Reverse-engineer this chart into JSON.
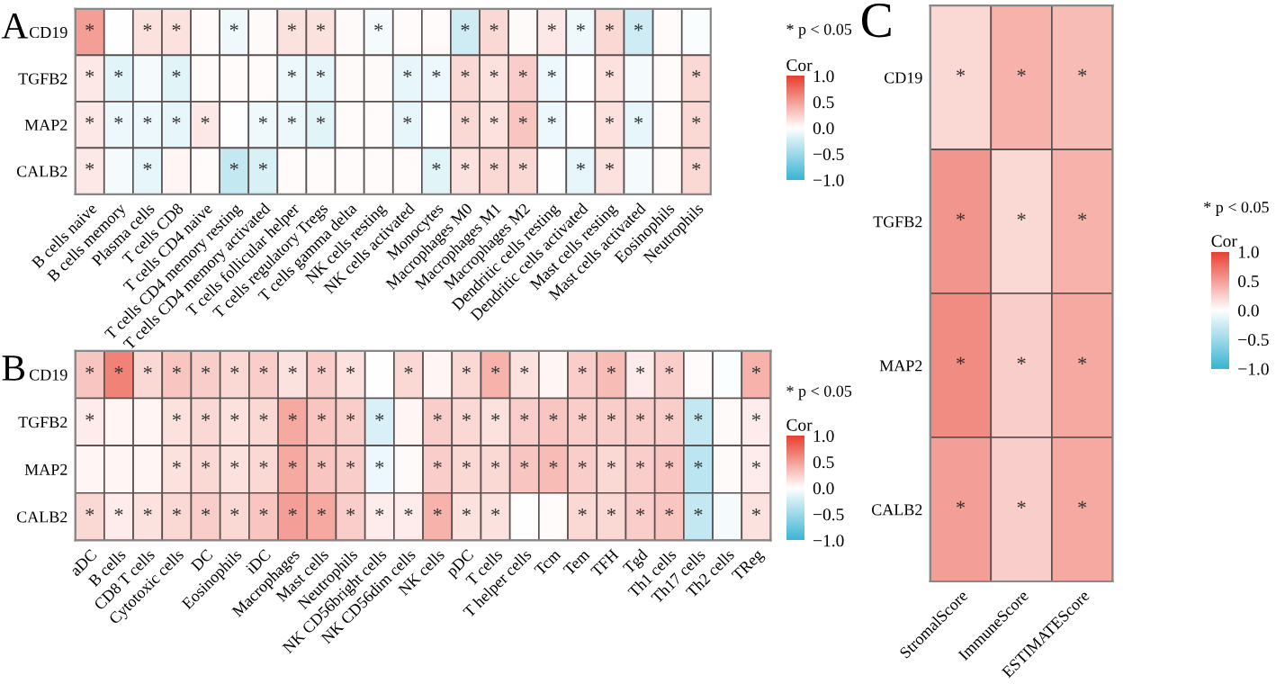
{
  "chart_data": [
    {
      "type": "heatmap",
      "title": "A",
      "clabel": "Cor",
      "annotations": [
        "* p < 0.05"
      ],
      "clim": [
        -1,
        1
      ],
      "cticks": [
        {
          "value": 1,
          "label": "1.0"
        },
        {
          "value": 0.5,
          "label": "0.5"
        },
        {
          "value": 0,
          "label": "0.0"
        },
        {
          "value": -0.5,
          "label": "−0.5"
        },
        {
          "value": -1,
          "label": "−1.0"
        }
      ],
      "colors": [
        "#3bb4d3",
        "#ffffff",
        "#e8402f"
      ],
      "categories": [
        "B cells naive",
        "B cells memory",
        "Plasma cells",
        "T cells CD8",
        "T cells CD4 naive",
        "T cells CD4 memory resting",
        "T cells CD4 memory activated",
        "T cells follicular helper",
        "T cells regulatory Tregs",
        "T cells gamma delta",
        "NK cells resting",
        "NK cells activated",
        "Monocytes",
        "Macrophages M0",
        "Macrophages M1",
        "Macrophages M2",
        "Dendritic cells resting",
        "Dendritic cells activated",
        "Mast cells resting",
        "Mast cells activated",
        "Eosinophils",
        "Neutrophils"
      ],
      "y_categories": [
        "CD19",
        "TGFB2",
        "MAP2",
        "CALB2"
      ],
      "cells": [
        [
          0.5,
          0.0,
          0.15,
          0.15,
          0.02,
          -0.08,
          0.03,
          0.15,
          0.15,
          0.03,
          -0.05,
          0.02,
          0.02,
          -0.25,
          0.2,
          0.03,
          0.12,
          -0.08,
          0.2,
          -0.25,
          0.02,
          -0.03
        ],
        [
          0.12,
          -0.15,
          -0.05,
          -0.15,
          0.02,
          0.02,
          0.02,
          -0.1,
          -0.12,
          0.03,
          0.03,
          -0.12,
          -0.1,
          0.2,
          0.15,
          0.25,
          -0.1,
          0.0,
          0.15,
          -0.05,
          0.02,
          0.2
        ],
        [
          0.12,
          -0.1,
          -0.1,
          -0.12,
          0.12,
          0.0,
          -0.08,
          -0.1,
          -0.15,
          0.02,
          0.02,
          -0.12,
          0.0,
          0.2,
          0.15,
          0.3,
          -0.1,
          0.0,
          0.15,
          -0.12,
          0.02,
          0.2
        ],
        [
          0.12,
          -0.05,
          -0.12,
          0.05,
          0.02,
          -0.3,
          -0.2,
          0.02,
          0.02,
          0.02,
          0.02,
          0.02,
          -0.15,
          0.15,
          0.2,
          0.2,
          0.0,
          -0.12,
          0.15,
          -0.05,
          0.02,
          0.2
        ]
      ],
      "cell_labels": [
        [
          "*",
          null,
          "*",
          "*",
          null,
          "*",
          null,
          "*",
          "*",
          null,
          "*",
          null,
          null,
          "*",
          "*",
          null,
          "*",
          "*",
          "*",
          "*",
          null,
          null
        ],
        [
          "*",
          "*",
          null,
          "*",
          null,
          null,
          null,
          "*",
          "*",
          null,
          null,
          "*",
          "*",
          "*",
          "*",
          "*",
          "*",
          null,
          "*",
          null,
          null,
          "*"
        ],
        [
          "*",
          "*",
          "*",
          "*",
          "*",
          null,
          "*",
          "*",
          "*",
          null,
          null,
          "*",
          null,
          "*",
          "*",
          "*",
          "*",
          null,
          "*",
          "*",
          null,
          "*"
        ],
        [
          "*",
          null,
          "*",
          null,
          null,
          "*",
          "*",
          null,
          null,
          null,
          null,
          null,
          "*",
          "*",
          "*",
          "*",
          null,
          "*",
          "*",
          null,
          null,
          "*"
        ]
      ]
    },
    {
      "type": "heatmap",
      "title": "B",
      "clabel": "Cor",
      "annotations": [
        "* p < 0.05"
      ],
      "clim": [
        -1,
        1
      ],
      "cticks": [
        {
          "value": 1,
          "label": "1.0"
        },
        {
          "value": 0.5,
          "label": "0.5"
        },
        {
          "value": 0,
          "label": "0.0"
        },
        {
          "value": -0.5,
          "label": "−0.5"
        },
        {
          "value": -1,
          "label": "−1.0"
        }
      ],
      "colors": [
        "#3bb4d3",
        "#ffffff",
        "#e8402f"
      ],
      "categories": [
        "aDC",
        "B cells",
        "CD8 T cells",
        "Cytotoxic cells",
        "DC",
        "Eosinophils",
        "iDC",
        "Macrophages",
        "Mast cells",
        "Neutrophils",
        "NK CD56bright cells",
        "NK CD56dim cells",
        "NK cells",
        "pDC",
        "T cells",
        "T helper cells",
        "Tcm",
        "Tem",
        "TFH",
        "Tgd",
        "Th1 cells",
        "Th17 cells",
        "Th2 cells",
        "TReg"
      ],
      "y_categories": [
        "CD19",
        "TGFB2",
        "MAP2",
        "CALB2"
      ],
      "cells": [
        [
          0.3,
          0.65,
          0.2,
          0.3,
          0.25,
          0.2,
          0.25,
          0.15,
          0.25,
          0.15,
          0.0,
          0.2,
          0.05,
          0.2,
          0.4,
          0.15,
          0.05,
          0.25,
          0.35,
          0.1,
          0.25,
          0.02,
          -0.02,
          0.4
        ],
        [
          0.1,
          0.05,
          0.05,
          0.15,
          0.2,
          0.15,
          0.2,
          0.45,
          0.3,
          0.25,
          -0.2,
          0.05,
          0.25,
          0.2,
          0.15,
          0.25,
          0.3,
          0.25,
          0.25,
          0.25,
          0.25,
          -0.3,
          0.03,
          0.1
        ],
        [
          0.05,
          0.05,
          0.05,
          0.15,
          0.2,
          0.15,
          0.2,
          0.45,
          0.3,
          0.25,
          -0.1,
          0.03,
          0.25,
          0.2,
          0.2,
          0.3,
          0.35,
          0.25,
          0.2,
          0.25,
          0.3,
          -0.35,
          0.03,
          0.1
        ],
        [
          0.2,
          0.1,
          0.15,
          0.2,
          0.25,
          0.2,
          0.3,
          0.5,
          0.45,
          0.25,
          0.1,
          0.1,
          0.4,
          0.15,
          0.15,
          0.0,
          0.02,
          0.2,
          0.2,
          0.25,
          0.3,
          -0.3,
          -0.05,
          0.15
        ]
      ],
      "cell_labels": [
        [
          "*",
          "*",
          "*",
          "*",
          "*",
          "*",
          "*",
          "*",
          "*",
          "*",
          null,
          "*",
          null,
          "*",
          "*",
          "*",
          null,
          "*",
          "*",
          "*",
          "*",
          null,
          null,
          "*"
        ],
        [
          "*",
          null,
          null,
          "*",
          "*",
          "*",
          "*",
          "*",
          "*",
          "*",
          "*",
          null,
          "*",
          "*",
          "*",
          "*",
          "*",
          "*",
          "*",
          "*",
          "*",
          "*",
          null,
          "*"
        ],
        [
          null,
          null,
          null,
          "*",
          "*",
          "*",
          "*",
          "*",
          "*",
          "*",
          "*",
          null,
          "*",
          "*",
          "*",
          "*",
          "*",
          "*",
          "*",
          "*",
          "*",
          "*",
          null,
          "*"
        ],
        [
          "*",
          "*",
          "*",
          "*",
          "*",
          "*",
          "*",
          "*",
          "*",
          "*",
          "*",
          "*",
          "*",
          "*",
          "*",
          null,
          null,
          "*",
          "*",
          "*",
          "*",
          "*",
          null,
          "*"
        ]
      ]
    },
    {
      "type": "heatmap",
      "title": "C",
      "clabel": "Cor",
      "annotations": [
        "* p < 0.05"
      ],
      "clim": [
        -1,
        1
      ],
      "cticks": [
        {
          "value": 1,
          "label": "1.0"
        },
        {
          "value": 0.5,
          "label": "0.5"
        },
        {
          "value": 0,
          "label": "0.0"
        },
        {
          "value": -0.5,
          "label": "−0.5"
        },
        {
          "value": -1,
          "label": "−1.0"
        }
      ],
      "colors": [
        "#3bb4d3",
        "#ffffff",
        "#e8402f"
      ],
      "categories": [
        "StromalScore",
        "ImmuneScore",
        "ESTIMATEScore"
      ],
      "y_categories": [
        "CD19",
        "TGFB2",
        "MAP2",
        "CALB2"
      ],
      "cells": [
        [
          0.2,
          0.4,
          0.35
        ],
        [
          0.55,
          0.2,
          0.4
        ],
        [
          0.6,
          0.25,
          0.45
        ],
        [
          0.5,
          0.25,
          0.45
        ]
      ],
      "cell_labels": [
        [
          "*",
          "*",
          "*"
        ],
        [
          "*",
          "*",
          "*"
        ],
        [
          "*",
          "*",
          "*"
        ],
        [
          "*",
          "*",
          "*"
        ]
      ]
    }
  ]
}
